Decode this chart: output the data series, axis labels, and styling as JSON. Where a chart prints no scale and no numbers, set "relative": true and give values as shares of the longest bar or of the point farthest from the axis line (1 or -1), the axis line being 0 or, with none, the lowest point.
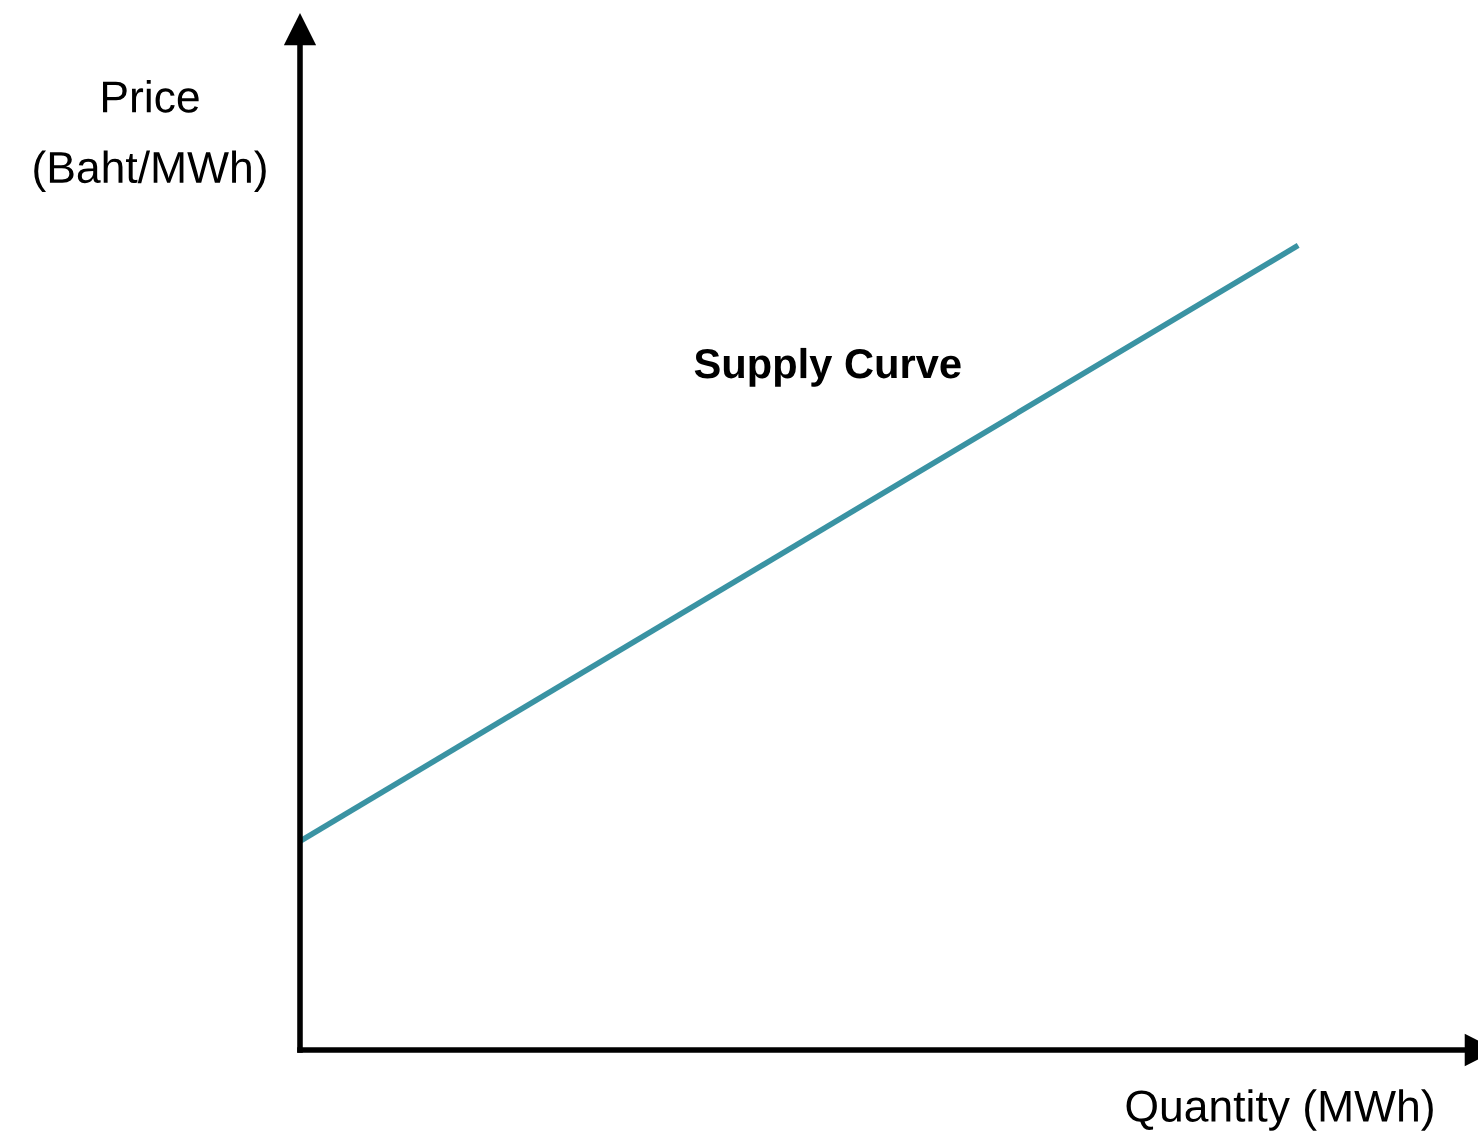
{
  "chart_data": {
    "type": "line",
    "relative": true,
    "xlabel": "Quantity (MWh)",
    "ylabel": "Price\n(Baht/MWh)",
    "categories": [
      null,
      null
    ],
    "series": [
      {
        "name": "Supply Curve",
        "color": "#3a93a3",
        "values": [
          0.26,
          1.0
        ]
      }
    ],
    "grid": false,
    "legend": false,
    "marker": "none",
    "line_style": "solid"
  }
}
